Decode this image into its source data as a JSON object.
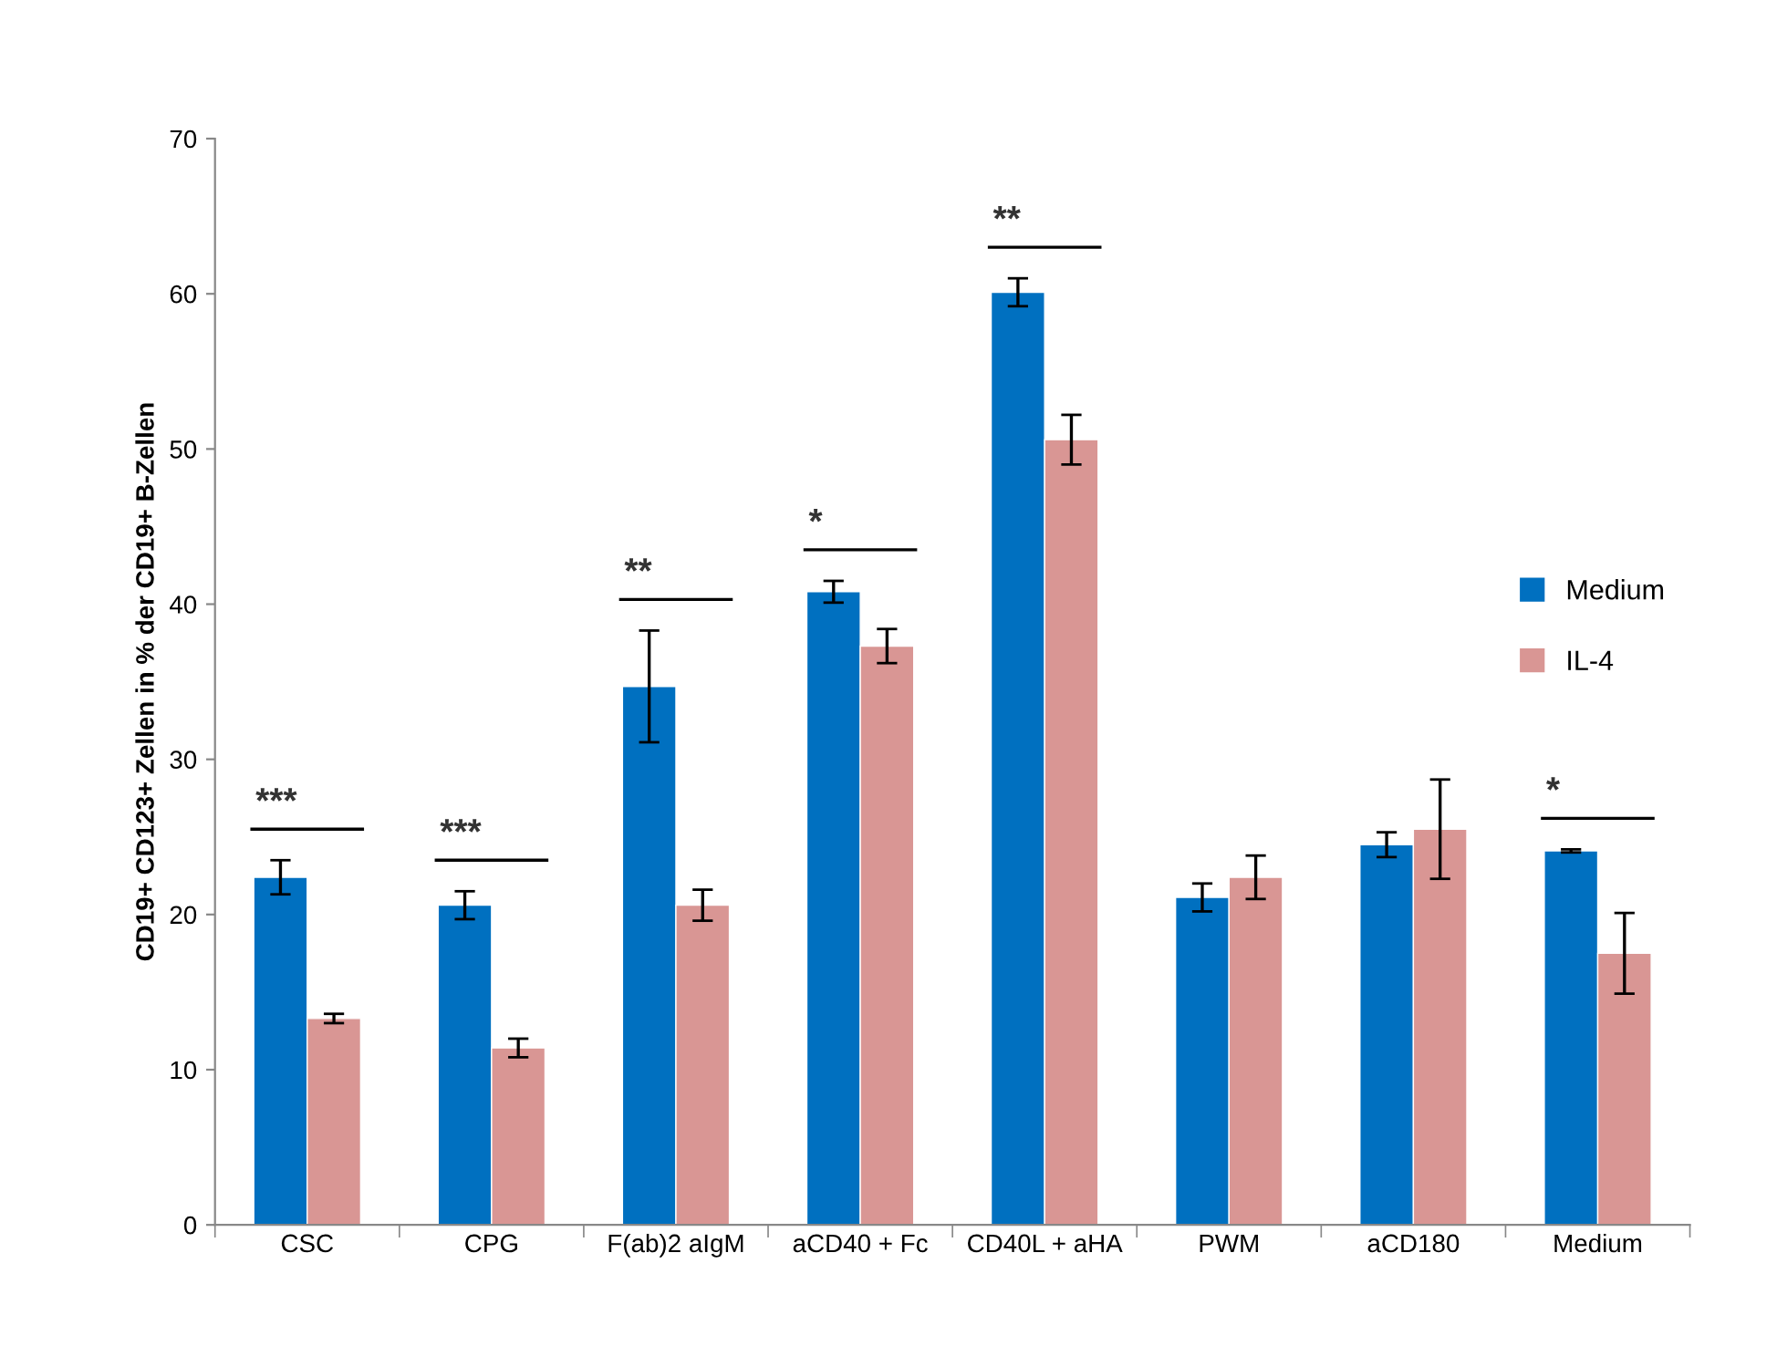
{
  "chart_data": {
    "type": "bar",
    "ylabel": "CD19+ CD123+ Zellen in % der CD19+ B-Zellen",
    "categories": [
      "CSC",
      "CPG",
      "F(ab)2 aIgM",
      "aCD40 + Fc",
      "CD40L + aHA",
      "PWM",
      "aCD180",
      "Medium"
    ],
    "series": [
      {
        "name": "Medium",
        "color": "#0070c0",
        "values": [
          22.4,
          20.6,
          34.7,
          40.8,
          60.1,
          21.1,
          24.5,
          24.1
        ],
        "errors": [
          1.1,
          0.9,
          3.6,
          0.7,
          0.9,
          0.9,
          0.8,
          0.1
        ]
      },
      {
        "name": "IL-4",
        "color": "#d99694",
        "values": [
          13.3,
          11.4,
          20.6,
          37.3,
          50.6,
          22.4,
          25.5,
          17.5
        ],
        "errors": [
          0.3,
          0.6,
          1.0,
          1.1,
          1.6,
          1.4,
          3.2,
          2.6
        ]
      }
    ],
    "ylim": [
      0,
      70
    ],
    "yticks": [
      0,
      10,
      20,
      30,
      40,
      50,
      60,
      70
    ],
    "annotations": [
      "***",
      "***",
      "**",
      "*",
      "**",
      "*"
    ],
    "grid": false,
    "legend": "right"
  }
}
